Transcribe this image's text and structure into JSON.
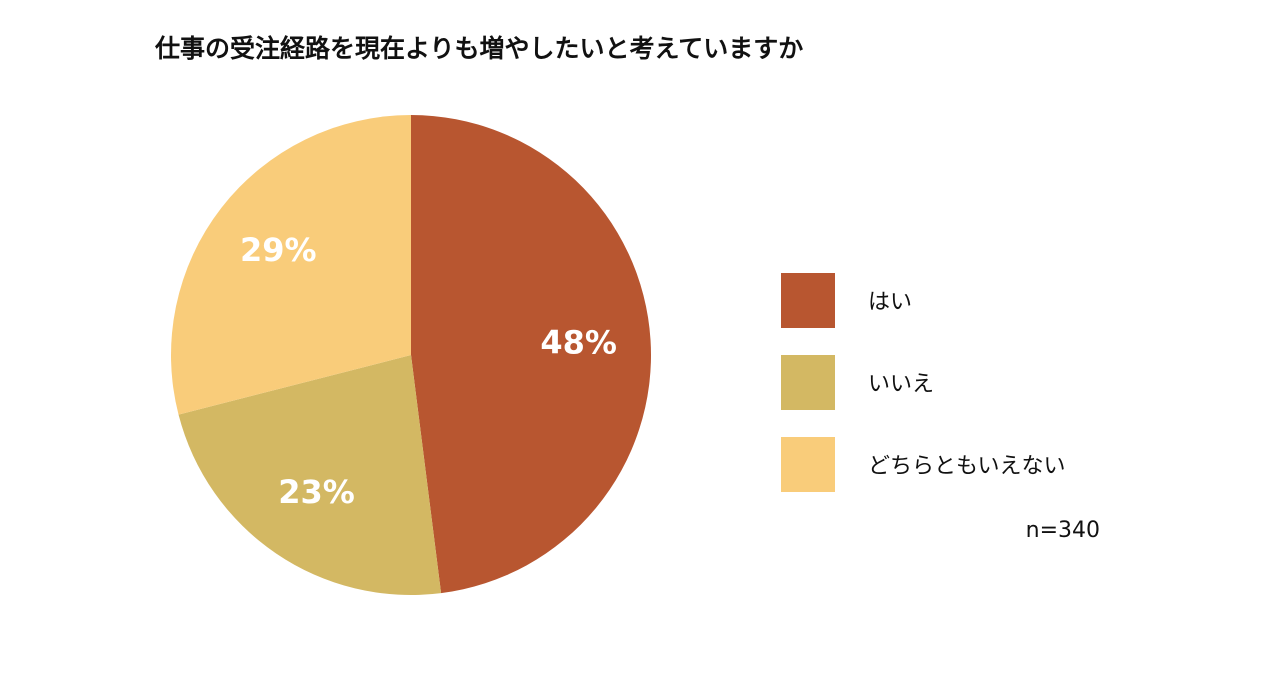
{
  "chart_data": {
    "type": "pie",
    "title": "仕事の受注経路を現在よりも増やしたいと考えていますか",
    "categories": [
      "はい",
      "いいえ",
      "どちらともいえない"
    ],
    "values": [
      48,
      23,
      29
    ],
    "value_labels": [
      "48%",
      "23%",
      "29%"
    ],
    "colors": [
      "#b85630",
      "#d3b863",
      "#f9cc7a"
    ],
    "note": "n=340"
  }
}
